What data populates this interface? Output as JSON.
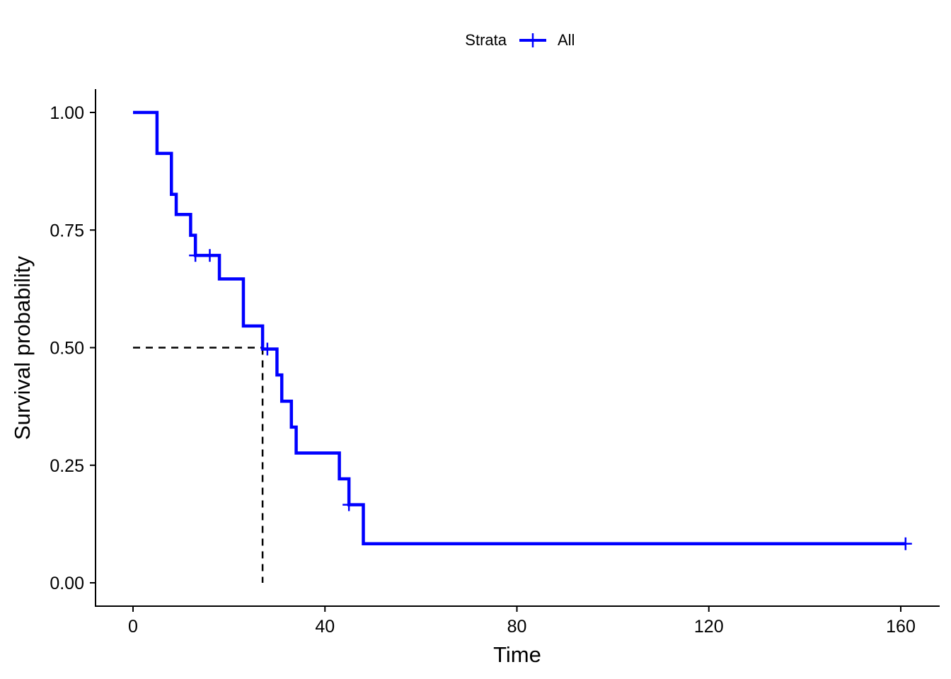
{
  "chart_data": {
    "type": "line",
    "subtype": "kaplan-meier-step",
    "title": "",
    "xlabel": "Time",
    "ylabel": "Survival probability",
    "xlim": [
      -8,
      167
    ],
    "ylim": [
      -0.05,
      1.05
    ],
    "x_ticks": [
      0,
      40,
      80,
      120,
      160
    ],
    "x_tick_labels": [
      "0",
      "40",
      "80",
      "120",
      "160"
    ],
    "y_ticks": [
      0,
      0.25,
      0.5,
      0.75,
      1
    ],
    "y_tick_labels": [
      "0.00",
      "0.25",
      "0.50",
      "0.75",
      "1.00"
    ],
    "grid": false,
    "legend": {
      "position": "top",
      "title": "Strata",
      "entries": [
        "All"
      ]
    },
    "series": [
      {
        "name": "All",
        "color": "#0000ff",
        "steps": [
          {
            "x": 0,
            "y": 1.0
          },
          {
            "x": 5,
            "y": 0.913
          },
          {
            "x": 8,
            "y": 0.826
          },
          {
            "x": 9,
            "y": 0.783
          },
          {
            "x": 12,
            "y": 0.739
          },
          {
            "x": 13,
            "y": 0.696
          },
          {
            "x": 18,
            "y": 0.646
          },
          {
            "x": 23,
            "y": 0.546
          },
          {
            "x": 27,
            "y": 0.497
          },
          {
            "x": 30,
            "y": 0.442
          },
          {
            "x": 31,
            "y": 0.386
          },
          {
            "x": 33,
            "y": 0.331
          },
          {
            "x": 34,
            "y": 0.276
          },
          {
            "x": 43,
            "y": 0.221
          },
          {
            "x": 45,
            "y": 0.166
          },
          {
            "x": 48,
            "y": 0.083
          }
        ],
        "end_x": 161,
        "censored": [
          {
            "x": 13,
            "y": 0.696
          },
          {
            "x": 16,
            "y": 0.696
          },
          {
            "x": 28,
            "y": 0.497
          },
          {
            "x": 45,
            "y": 0.166
          },
          {
            "x": 161,
            "y": 0.083
          }
        ]
      }
    ],
    "median_survival": {
      "x": 27,
      "y": 0.5,
      "line_style": "dashed"
    }
  }
}
